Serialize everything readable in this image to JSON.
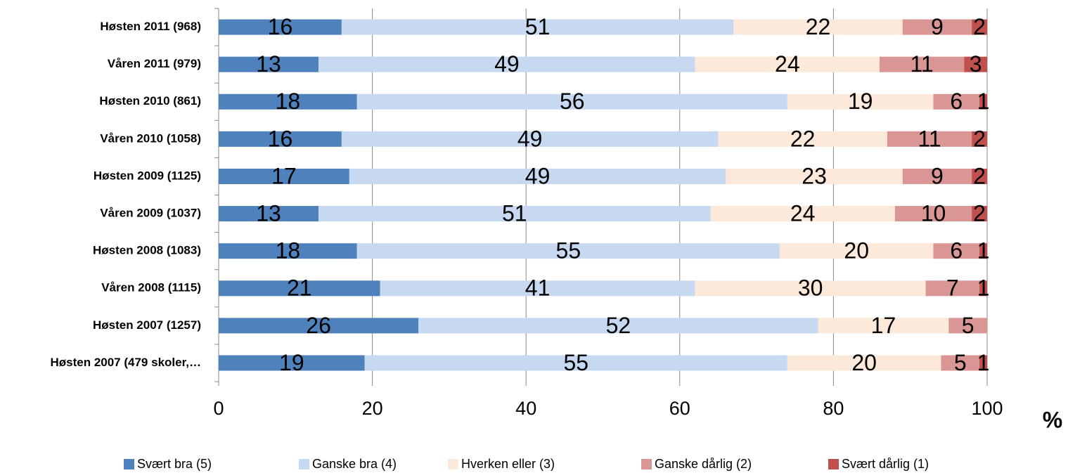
{
  "chart_data": {
    "type": "stacked-bar-horizontal",
    "categories": [
      "Høsten 2011 (968)",
      "Våren 2011 (979)",
      "Høsten 2010 (861)",
      "Våren 2010 (1058)",
      "Høsten 2009 (1125)",
      "Våren 2009 (1037)",
      "Høsten 2008 (1083)",
      "Våren 2008 (1115)",
      "Høsten 2007 (1257)",
      "Høsten 2007 (479 skoler,…"
    ],
    "series": [
      {
        "name": "Svært bra (5)",
        "color": "#4f81bd",
        "values": [
          16,
          13,
          18,
          16,
          17,
          13,
          18,
          21,
          26,
          19
        ]
      },
      {
        "name": "Ganske bra (4)",
        "color": "#c6d9f1",
        "values": [
          51,
          49,
          56,
          49,
          49,
          51,
          55,
          41,
          52,
          55
        ]
      },
      {
        "name": "Hverken eller (3)",
        "color": "#fde9d9",
        "values": [
          22,
          24,
          19,
          22,
          23,
          24,
          20,
          30,
          17,
          20
        ]
      },
      {
        "name": "Ganske dårlig (2)",
        "color": "#d99694",
        "values": [
          9,
          11,
          6,
          11,
          9,
          10,
          6,
          7,
          5,
          5
        ]
      },
      {
        "name": "Svært dårlig (1)",
        "color": "#c0504d",
        "values": [
          2,
          3,
          1,
          2,
          2,
          2,
          1,
          1,
          null,
          1
        ]
      }
    ],
    "xlim": [
      0,
      100
    ],
    "xticks": [
      0,
      20,
      40,
      60,
      80,
      100
    ],
    "x_label": "%",
    "grid": true,
    "legend": "bottom"
  }
}
